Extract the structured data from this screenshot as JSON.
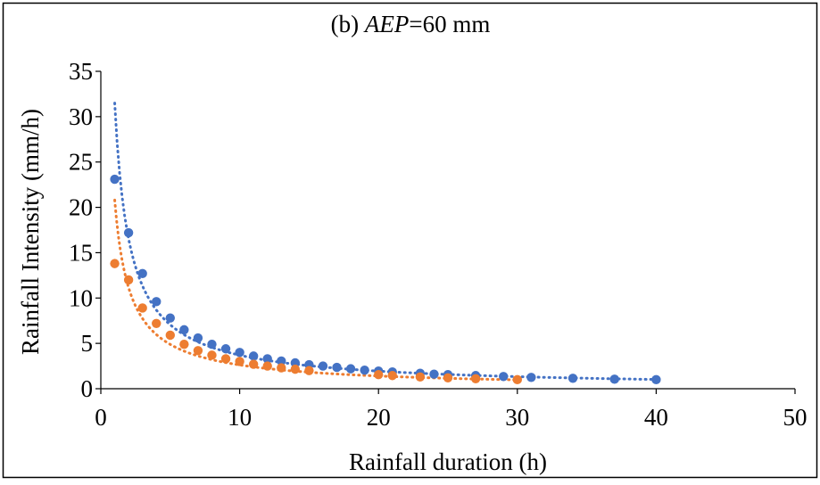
{
  "chart_data": {
    "type": "scatter",
    "title_prefix": "(b) ",
    "title_italic": "AEP",
    "title_suffix": "=60 mm",
    "xlabel": "Rainfall duration (h)",
    "ylabel": "Rainfall Intensity (mm/h)",
    "xlim": [
      0,
      50
    ],
    "ylim": [
      0,
      35
    ],
    "x_ticks": [
      0,
      10,
      20,
      30,
      40,
      50
    ],
    "y_ticks": [
      0,
      5,
      10,
      15,
      20,
      25,
      30,
      35
    ],
    "grid": false,
    "legend": "none",
    "series": [
      {
        "color": "#4472C4",
        "x": [
          1,
          2,
          3,
          4,
          5,
          6,
          7,
          8,
          9,
          10,
          11,
          12,
          13,
          14,
          15,
          16,
          17,
          18,
          19,
          20,
          21,
          23,
          24,
          25,
          27,
          29,
          31,
          34,
          37,
          40
        ],
        "y": [
          23.1,
          17.2,
          12.7,
          9.6,
          7.8,
          6.5,
          5.6,
          4.9,
          4.4,
          4.0,
          3.6,
          3.3,
          3.05,
          2.85,
          2.65,
          2.5,
          2.35,
          2.2,
          2.05,
          1.95,
          1.85,
          1.7,
          1.6,
          1.55,
          1.45,
          1.35,
          1.25,
          1.15,
          1.05,
          1.0
        ],
        "trend": {
          "type": "power",
          "a": 31.5,
          "b": -0.93,
          "x_range": [
            1,
            40
          ]
        }
      },
      {
        "color": "#ED7D31",
        "x": [
          1,
          2,
          3,
          4,
          5,
          6,
          7,
          8,
          9,
          10,
          11,
          12,
          13,
          14,
          15,
          20,
          21,
          23,
          25,
          27,
          30
        ],
        "y": [
          13.8,
          12.0,
          8.9,
          7.2,
          5.9,
          4.9,
          4.2,
          3.7,
          3.3,
          3.0,
          2.7,
          2.5,
          2.3,
          2.15,
          2.0,
          1.55,
          1.45,
          1.3,
          1.2,
          1.1,
          1.0
        ],
        "trend": {
          "type": "power",
          "a": 20.8,
          "b": -0.9,
          "x_range": [
            1,
            30
          ]
        }
      }
    ]
  }
}
